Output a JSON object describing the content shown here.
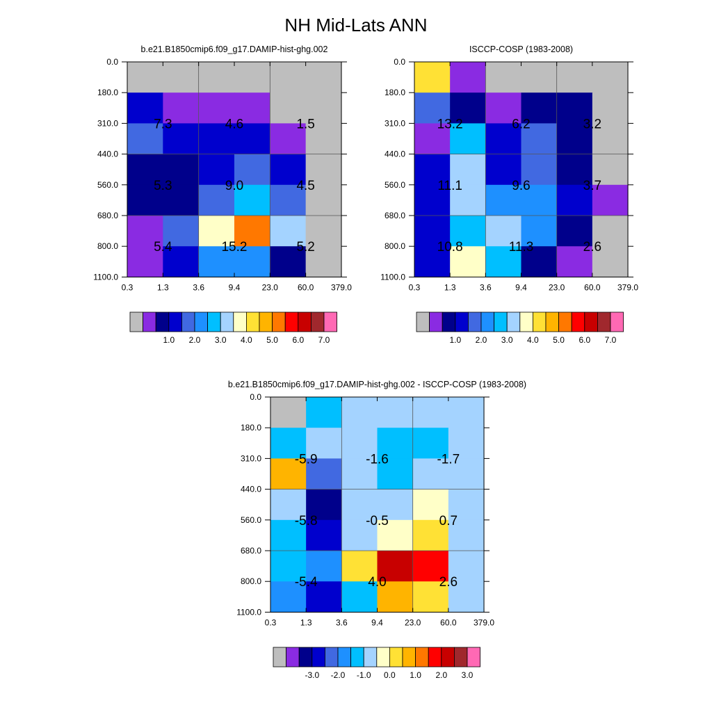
{
  "figure_title": "NH Mid-Lats ANN",
  "palette_main": [
    "#bebebe",
    "#8a2be2",
    "#00008b",
    "#0000cd",
    "#4169e1",
    "#1e90ff",
    "#00bfff",
    "#a4d3ff",
    "#ffffc8",
    "#ffe135",
    "#ffb400",
    "#ff7800",
    "#ff0000",
    "#c80000",
    "#a0282d",
    "#ff69b4"
  ],
  "palette_diff": [
    "#bebebe",
    "#8a2be2",
    "#00008b",
    "#0000cd",
    "#4169e1",
    "#1e90ff",
    "#00bfff",
    "#a4d3ff",
    "#ffffc8",
    "#ffe135",
    "#ffb400",
    "#ff7800",
    "#ff0000",
    "#c80000",
    "#a0282d",
    "#ff69b4"
  ],
  "chart_data": [
    {
      "type": "heatmap",
      "title": "b.e21.B1850cmip6.f09_g17.DAMIP-hist-ghg.002",
      "x_ticks": [
        "0.3",
        "1.3",
        "3.6",
        "9.4",
        "23.0",
        "60.0",
        "379.0"
      ],
      "y_ticks": [
        "0.0",
        "180.0",
        "310.0",
        "440.0",
        "560.0",
        "680.0",
        "800.0",
        "1100.0"
      ],
      "cell_color_index": [
        [
          0,
          0,
          0,
          0,
          0,
          0
        ],
        [
          3,
          1,
          1,
          1,
          0,
          0
        ],
        [
          4,
          3,
          3,
          3,
          1,
          0
        ],
        [
          2,
          2,
          3,
          4,
          3,
          0
        ],
        [
          2,
          2,
          4,
          6,
          4,
          0
        ],
        [
          1,
          4,
          8,
          11,
          7,
          0
        ],
        [
          1,
          3,
          5,
          5,
          2,
          0
        ]
      ],
      "annotations": [
        {
          "col_pair": 0,
          "row_pair": 0,
          "text": "7.3"
        },
        {
          "col_pair": 1,
          "row_pair": 0,
          "text": "4.6"
        },
        {
          "col_pair": 2,
          "row_pair": 0,
          "text": "1.5"
        },
        {
          "col_pair": 0,
          "row_pair": 1,
          "text": "5.3"
        },
        {
          "col_pair": 1,
          "row_pair": 1,
          "text": "9.0"
        },
        {
          "col_pair": 2,
          "row_pair": 1,
          "text": "4.5"
        },
        {
          "col_pair": 0,
          "row_pair": 2,
          "text": "5.4"
        },
        {
          "col_pair": 1,
          "row_pair": 2,
          "text": "15.2"
        },
        {
          "col_pair": 2,
          "row_pair": 2,
          "text": "5.2"
        }
      ],
      "colorbar_labels": [
        "1.0",
        "2.0",
        "3.0",
        "4.0",
        "5.0",
        "6.0",
        "7.0"
      ]
    },
    {
      "type": "heatmap",
      "title": "ISCCP-COSP (1983-2008)",
      "x_ticks": [
        "0.3",
        "1.3",
        "3.6",
        "9.4",
        "23.0",
        "60.0",
        "379.0"
      ],
      "y_ticks": [
        "0.0",
        "180.0",
        "310.0",
        "440.0",
        "560.0",
        "680.0",
        "800.0",
        "1100.0"
      ],
      "cell_color_index": [
        [
          9,
          1,
          0,
          0,
          0,
          0
        ],
        [
          4,
          2,
          1,
          2,
          2,
          0
        ],
        [
          1,
          6,
          3,
          4,
          2,
          0
        ],
        [
          3,
          7,
          3,
          4,
          2,
          0
        ],
        [
          3,
          7,
          5,
          5,
          3,
          1
        ],
        [
          3,
          6,
          7,
          5,
          2,
          0
        ],
        [
          3,
          8,
          6,
          2,
          1,
          0
        ]
      ],
      "annotations": [
        {
          "col_pair": 0,
          "row_pair": 0,
          "text": "13.2"
        },
        {
          "col_pair": 1,
          "row_pair": 0,
          "text": "6.2"
        },
        {
          "col_pair": 2,
          "row_pair": 0,
          "text": "3.2"
        },
        {
          "col_pair": 0,
          "row_pair": 1,
          "text": "11.1"
        },
        {
          "col_pair": 1,
          "row_pair": 1,
          "text": "9.6"
        },
        {
          "col_pair": 2,
          "row_pair": 1,
          "text": "3.7"
        },
        {
          "col_pair": 0,
          "row_pair": 2,
          "text": "10.8"
        },
        {
          "col_pair": 1,
          "row_pair": 2,
          "text": "11.3"
        },
        {
          "col_pair": 2,
          "row_pair": 2,
          "text": "2.6"
        }
      ],
      "colorbar_labels": [
        "1.0",
        "2.0",
        "3.0",
        "4.0",
        "5.0",
        "6.0",
        "7.0"
      ]
    },
    {
      "type": "heatmap",
      "title": "b.e21.B1850cmip6.f09_g17.DAMIP-hist-ghg.002 - ISCCP-COSP (1983-2008)",
      "x_ticks": [
        "0.3",
        "1.3",
        "3.6",
        "9.4",
        "23.0",
        "60.0",
        "379.0"
      ],
      "y_ticks": [
        "0.0",
        "180.0",
        "310.0",
        "440.0",
        "560.0",
        "680.0",
        "800.0",
        "1100.0"
      ],
      "cell_color_index": [
        [
          0,
          6,
          7,
          7,
          7,
          7
        ],
        [
          6,
          7,
          7,
          6,
          6,
          7
        ],
        [
          10,
          4,
          7,
          6,
          7,
          7
        ],
        [
          7,
          2,
          7,
          7,
          8,
          7
        ],
        [
          6,
          3,
          7,
          8,
          9,
          7
        ],
        [
          6,
          5,
          9,
          13,
          12,
          7
        ],
        [
          5,
          3,
          6,
          10,
          9,
          7
        ]
      ],
      "annotations": [
        {
          "col_pair": 0,
          "row_pair": 0,
          "text": "-5.9"
        },
        {
          "col_pair": 1,
          "row_pair": 0,
          "text": "-1.6"
        },
        {
          "col_pair": 2,
          "row_pair": 0,
          "text": "-1.7"
        },
        {
          "col_pair": 0,
          "row_pair": 1,
          "text": "-5.8"
        },
        {
          "col_pair": 1,
          "row_pair": 1,
          "text": "-0.5"
        },
        {
          "col_pair": 2,
          "row_pair": 1,
          "text": "0.7"
        },
        {
          "col_pair": 0,
          "row_pair": 2,
          "text": "-5.4"
        },
        {
          "col_pair": 1,
          "row_pair": 2,
          "text": "4.0"
        },
        {
          "col_pair": 2,
          "row_pair": 2,
          "text": "2.6"
        }
      ],
      "colorbar_labels": [
        "-3.0",
        "-2.0",
        "-1.0",
        "0.0",
        "1.0",
        "2.0",
        "3.0"
      ]
    }
  ]
}
